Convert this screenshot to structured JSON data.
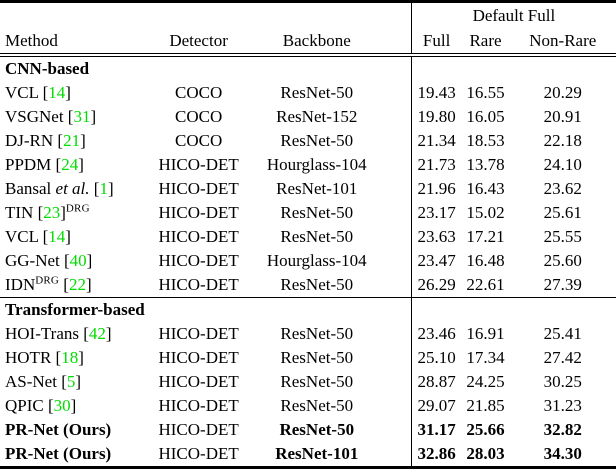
{
  "colors": {
    "citation": "#00dd00",
    "text": "#000000",
    "background": "#ffffff"
  },
  "table": {
    "group_header": "Default Full",
    "columns": [
      "Method",
      "Detector",
      "Backbone",
      "Full",
      "Rare",
      "Non-Rare"
    ],
    "rows": [
      {
        "type": "section",
        "label": "CNN-based"
      },
      {
        "type": "data",
        "method": [
          {
            "t": "text",
            "v": "VCL ["
          },
          {
            "t": "cite",
            "v": "14"
          },
          {
            "t": "text",
            "v": "]"
          }
        ],
        "detector": "COCO",
        "backbone": "ResNet-50",
        "full": "19.43",
        "rare": "16.55",
        "nonrare": "20.29"
      },
      {
        "type": "data",
        "method": [
          {
            "t": "text",
            "v": "VSGNet ["
          },
          {
            "t": "cite",
            "v": "31"
          },
          {
            "t": "text",
            "v": "]"
          }
        ],
        "detector": "COCO",
        "backbone": "ResNet-152",
        "full": "19.80",
        "rare": "16.05",
        "nonrare": "20.91"
      },
      {
        "type": "data",
        "method": [
          {
            "t": "text",
            "v": "DJ-RN ["
          },
          {
            "t": "cite",
            "v": "21"
          },
          {
            "t": "text",
            "v": "]"
          }
        ],
        "detector": "COCO",
        "backbone": "ResNet-50",
        "full": "21.34",
        "rare": "18.53",
        "nonrare": "22.18"
      },
      {
        "type": "data",
        "method": [
          {
            "t": "text",
            "v": "PPDM ["
          },
          {
            "t": "cite",
            "v": "24"
          },
          {
            "t": "text",
            "v": "]"
          }
        ],
        "detector": "HICO-DET",
        "backbone": "Hourglass-104",
        "full": "21.73",
        "rare": "13.78",
        "nonrare": "24.10"
      },
      {
        "type": "data",
        "method": [
          {
            "t": "text",
            "v": "Bansal "
          },
          {
            "t": "italic",
            "v": "et al."
          },
          {
            "t": "text",
            "v": " ["
          },
          {
            "t": "cite",
            "v": "1"
          },
          {
            "t": "text",
            "v": "]"
          }
        ],
        "detector": "HICO-DET",
        "backbone": "ResNet-101",
        "full": "21.96",
        "rare": "16.43",
        "nonrare": "23.62"
      },
      {
        "type": "data",
        "method": [
          {
            "t": "text",
            "v": "TIN ["
          },
          {
            "t": "cite",
            "v": "23"
          },
          {
            "t": "text",
            "v": "]"
          },
          {
            "t": "sup",
            "v": "DRG"
          }
        ],
        "detector": "HICO-DET",
        "backbone": "ResNet-50",
        "full": "23.17",
        "rare": "15.02",
        "nonrare": "25.61"
      },
      {
        "type": "data",
        "method": [
          {
            "t": "text",
            "v": "VCL ["
          },
          {
            "t": "cite",
            "v": "14"
          },
          {
            "t": "text",
            "v": "]"
          }
        ],
        "detector": "HICO-DET",
        "backbone": "ResNet-50",
        "full": "23.63",
        "rare": "17.21",
        "nonrare": "25.55"
      },
      {
        "type": "data",
        "method": [
          {
            "t": "text",
            "v": "GG-Net ["
          },
          {
            "t": "cite",
            "v": "40"
          },
          {
            "t": "text",
            "v": "]"
          }
        ],
        "detector": "HICO-DET",
        "backbone": "Hourglass-104",
        "full": "23.47",
        "rare": "16.48",
        "nonrare": "25.60"
      },
      {
        "type": "data",
        "method": [
          {
            "t": "text",
            "v": "IDN"
          },
          {
            "t": "sup",
            "v": "DRG"
          },
          {
            "t": "text",
            "v": " ["
          },
          {
            "t": "cite",
            "v": "22"
          },
          {
            "t": "text",
            "v": "]"
          }
        ],
        "detector": "HICO-DET",
        "backbone": "ResNet-50",
        "full": "26.29",
        "rare": "22.61",
        "nonrare": "27.39",
        "rule_below": true
      },
      {
        "type": "section",
        "label": "Transformer-based"
      },
      {
        "type": "data",
        "method": [
          {
            "t": "text",
            "v": "HOI-Trans ["
          },
          {
            "t": "cite",
            "v": "42"
          },
          {
            "t": "text",
            "v": "]"
          }
        ],
        "detector": "HICO-DET",
        "backbone": "ResNet-50",
        "full": "23.46",
        "rare": "16.91",
        "nonrare": "25.41"
      },
      {
        "type": "data",
        "method": [
          {
            "t": "text",
            "v": "HOTR ["
          },
          {
            "t": "cite",
            "v": "18"
          },
          {
            "t": "text",
            "v": "]"
          }
        ],
        "detector": "HICO-DET",
        "backbone": "ResNet-50",
        "full": "25.10",
        "rare": "17.34",
        "nonrare": "27.42"
      },
      {
        "type": "data",
        "method": [
          {
            "t": "text",
            "v": "AS-Net ["
          },
          {
            "t": "cite",
            "v": "5"
          },
          {
            "t": "text",
            "v": "]"
          }
        ],
        "detector": "HICO-DET",
        "backbone": "ResNet-50",
        "full": "28.87",
        "rare": "24.25",
        "nonrare": "30.25"
      },
      {
        "type": "data",
        "method": [
          {
            "t": "text",
            "v": "QPIC ["
          },
          {
            "t": "cite",
            "v": "30"
          },
          {
            "t": "text",
            "v": "]"
          }
        ],
        "detector": "HICO-DET",
        "backbone": "ResNet-50",
        "full": "29.07",
        "rare": "21.85",
        "nonrare": "31.23"
      },
      {
        "type": "data",
        "method": [
          {
            "t": "bold",
            "v": "PR-Net (Ours)"
          }
        ],
        "detector": "HICO-DET",
        "backbone": "ResNet-50",
        "backbone_bold": true,
        "values_bold": true,
        "full": "31.17",
        "rare": "25.66",
        "nonrare": "32.82"
      },
      {
        "type": "data",
        "method": [
          {
            "t": "bold",
            "v": "PR-Net (Ours)"
          }
        ],
        "detector": "HICO-DET",
        "backbone": "ResNet-101",
        "backbone_bold": true,
        "values_bold": true,
        "full": "32.86",
        "rare": "28.03",
        "nonrare": "34.30"
      }
    ]
  }
}
